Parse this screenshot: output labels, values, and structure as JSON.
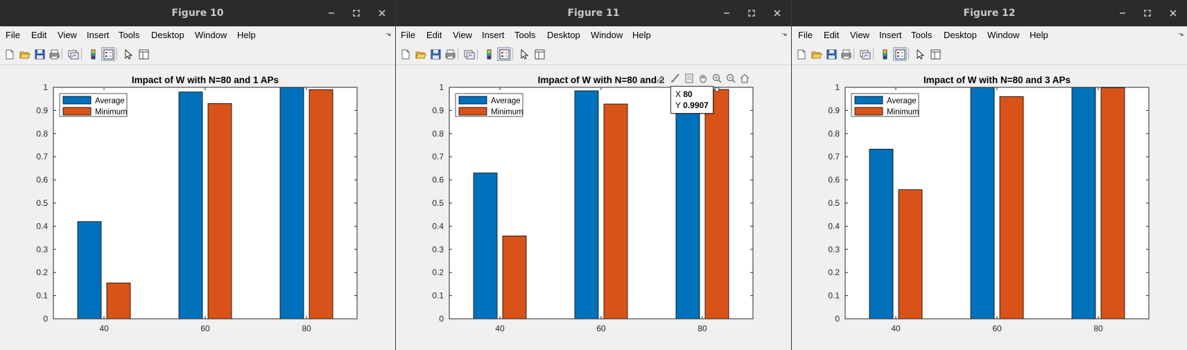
{
  "colors": {
    "average": "#0072BD",
    "minimum": "#D95319",
    "titlebar": "#2b2b2b"
  },
  "menu": [
    "File",
    "Edit",
    "View",
    "Insert",
    "Tools",
    "Desktop",
    "Window",
    "Help"
  ],
  "window_controls": [
    "minimize-icon",
    "maximize-icon",
    "close-icon"
  ],
  "toolbar_icons": [
    "new-figure-icon",
    "open-file-icon",
    "save-icon",
    "print-icon",
    "link-plot-icon",
    "colorbar-icon",
    "legend-icon",
    "edit-plot-arrow-icon",
    "property-inspector-icon"
  ],
  "figures": [
    {
      "window_title": "Figure 10",
      "chart_data": {
        "type": "bar",
        "title": "Impact of W with N=80 and 1 APs",
        "categories": [
          "40",
          "60",
          "80"
        ],
        "series": [
          {
            "name": "Average",
            "values": [
              0.42,
              0.98,
              1.0
            ]
          },
          {
            "name": "Minimum",
            "values": [
              0.155,
              0.93,
              0.99
            ]
          }
        ],
        "ylim": [
          0,
          1
        ],
        "yticks": [
          "0",
          "0.1",
          "0.2",
          "0.3",
          "0.4",
          "0.5",
          "0.6",
          "0.7",
          "0.8",
          "0.9",
          "1"
        ],
        "legend": "top-left",
        "grid": false
      }
    },
    {
      "window_title": "Figure 11",
      "chart_data": {
        "type": "bar",
        "title": "Impact of W with N=80 and 2",
        "categories": [
          "40",
          "60",
          "80"
        ],
        "series": [
          {
            "name": "Average",
            "values": [
              0.63,
              0.985,
              1.0
            ]
          },
          {
            "name": "Minimum",
            "values": [
              0.358,
              0.928,
              0.9907
            ]
          }
        ],
        "ylim": [
          0,
          1
        ],
        "yticks": [
          "0",
          "0.1",
          "0.2",
          "0.3",
          "0.4",
          "0.5",
          "0.6",
          "0.7",
          "0.8",
          "0.9",
          "1"
        ],
        "legend": "top-left",
        "grid": false
      },
      "axes_toolbar": [
        "export-icon",
        "brush-icon",
        "data-tip-icon",
        "pan-hand-icon",
        "zoom-in-icon",
        "zoom-out-icon",
        "home-icon"
      ],
      "datatip": {
        "x_label": "X",
        "x_value": "80",
        "y_label": "Y",
        "y_value": "0.9907"
      }
    },
    {
      "window_title": "Figure 12",
      "chart_data": {
        "type": "bar",
        "title": "Impact of W with N=80 and 3 APs",
        "categories": [
          "40",
          "60",
          "80"
        ],
        "series": [
          {
            "name": "Average",
            "values": [
              0.733,
              1.0,
              1.0
            ]
          },
          {
            "name": "Minimum",
            "values": [
              0.558,
              0.96,
              0.998
            ]
          }
        ],
        "ylim": [
          0,
          1
        ],
        "yticks": [
          "0",
          "0.1",
          "0.2",
          "0.3",
          "0.4",
          "0.5",
          "0.6",
          "0.7",
          "0.8",
          "0.9",
          "1"
        ],
        "legend": "top-left",
        "grid": false
      }
    }
  ]
}
